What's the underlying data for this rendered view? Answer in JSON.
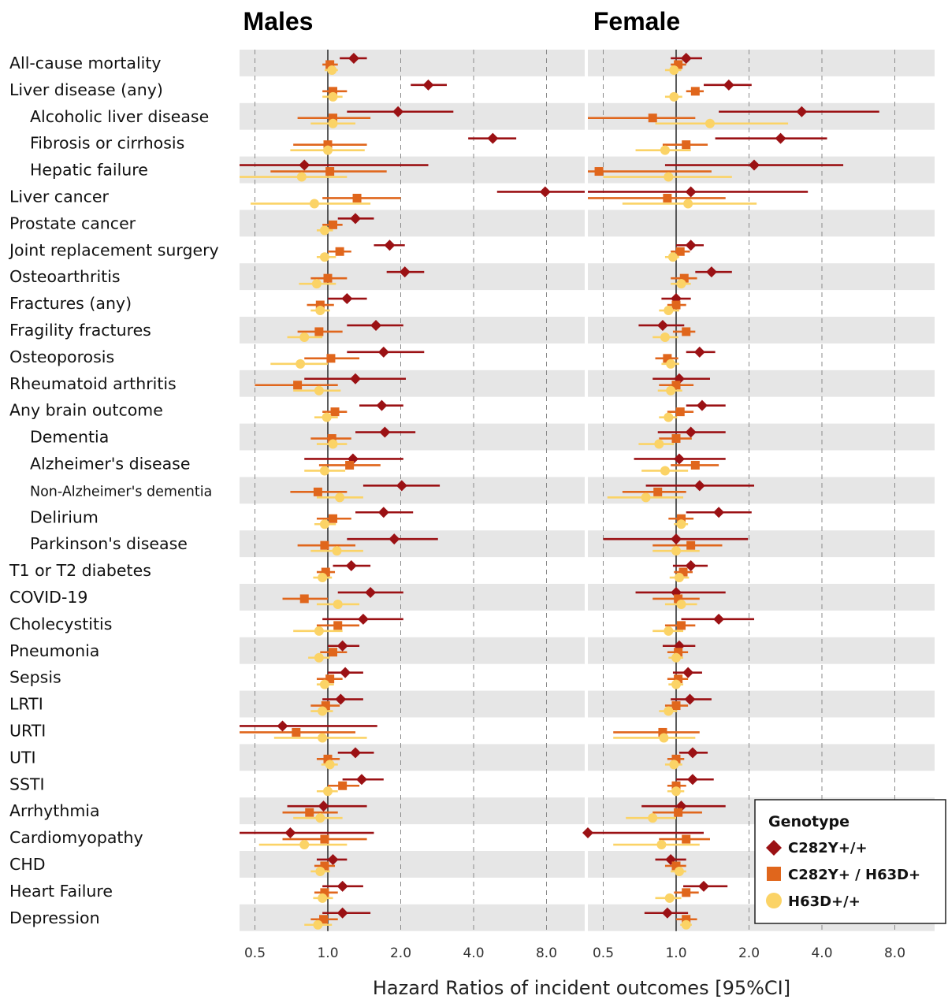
{
  "chart_data": {
    "type": "forest",
    "xlabel": "Hazard Ratios of incident outcomes [95%CI]",
    "x_scale": "log2",
    "x_ticks": [
      0.5,
      1.0,
      2.0,
      4.0,
      8.0
    ],
    "x_tick_labels": [
      "0.5",
      "1.0",
      "2.0",
      "4.0",
      "8.0"
    ],
    "xlim": [
      0.4,
      12.5
    ],
    "reference_line": 1.0,
    "grid": "vertical dashed",
    "legend": {
      "title": "Genotype",
      "placement": "bottom-right",
      "entries": [
        {
          "label": "C282Y+/+",
          "marker": "diamond",
          "color": "#9b1114"
        },
        {
          "label": "C282Y+ / H63D+",
          "marker": "square",
          "color": "#e0661c"
        },
        {
          "label": "H63D+/+",
          "marker": "circle",
          "color": "#fbd366"
        }
      ]
    },
    "outcomes": [
      {
        "label": "All-cause mortality",
        "indent": 0
      },
      {
        "label": "Liver disease (any)",
        "indent": 0
      },
      {
        "label": "Alcoholic liver disease",
        "indent": 1
      },
      {
        "label": "Fibrosis or cirrhosis",
        "indent": 1
      },
      {
        "label": "Hepatic failure",
        "indent": 1
      },
      {
        "label": "Liver cancer",
        "indent": 0
      },
      {
        "label": "Prostate cancer",
        "indent": 0
      },
      {
        "label": "Joint replacement surgery",
        "indent": 0
      },
      {
        "label": "Osteoarthritis",
        "indent": 0
      },
      {
        "label": "Fractures (any)",
        "indent": 0
      },
      {
        "label": "Fragility fractures",
        "indent": 0
      },
      {
        "label": "Osteoporosis",
        "indent": 0
      },
      {
        "label": "Rheumatoid arthritis",
        "indent": 0
      },
      {
        "label": "Any brain outcome",
        "indent": 0
      },
      {
        "label": "Dementia",
        "indent": 1
      },
      {
        "label": "Alzheimer's disease",
        "indent": 1
      },
      {
        "label": "Non-Alzheimer's dementia",
        "indent": 1
      },
      {
        "label": "Delirium",
        "indent": 1
      },
      {
        "label": "Parkinson's disease",
        "indent": 1
      },
      {
        "label": "T1 or T2 diabetes",
        "indent": 0
      },
      {
        "label": "COVID-19",
        "indent": 0
      },
      {
        "label": "Cholecystitis",
        "indent": 0
      },
      {
        "label": "Pneumonia",
        "indent": 0
      },
      {
        "label": "Sepsis",
        "indent": 0
      },
      {
        "label": "LRTI",
        "indent": 0
      },
      {
        "label": "URTI",
        "indent": 0
      },
      {
        "label": "UTI",
        "indent": 0
      },
      {
        "label": "SSTI",
        "indent": 0
      },
      {
        "label": "Arrhythmia",
        "indent": 0
      },
      {
        "label": "Cardiomyopathy",
        "indent": 0
      },
      {
        "label": "CHD",
        "indent": 0
      },
      {
        "label": "Heart Failure",
        "indent": 0
      },
      {
        "label": "Depression",
        "indent": 0
      }
    ],
    "panels": [
      {
        "title": "Males",
        "series": [
          {
            "name": "C282Y+/+",
            "hr": [
              1.28,
              2.6,
              1.95,
              4.8,
              0.8,
              7.9,
              1.3,
              1.8,
              2.08,
              1.2,
              1.58,
              1.7,
              1.3,
              1.67,
              1.72,
              1.27,
              2.02,
              1.7,
              1.88,
              1.25,
              1.5,
              1.4,
              1.15,
              1.18,
              1.13,
              0.65,
              1.3,
              1.38,
              0.96,
              0.7,
              1.05,
              1.15,
              1.15
            ],
            "lo": [
              1.12,
              2.2,
              1.2,
              3.8,
              0.4,
              5.0,
              1.1,
              1.55,
              1.75,
              1.0,
              1.2,
              1.2,
              0.8,
              1.35,
              1.3,
              0.8,
              1.4,
              1.3,
              1.2,
              1.05,
              1.1,
              0.95,
              1.0,
              1.0,
              0.95,
              0.4,
              1.1,
              1.15,
              0.68,
              0.4,
              0.9,
              0.95,
              0.95
            ],
            "hi": [
              1.45,
              3.1,
              3.3,
              6.0,
              2.6,
              12.5,
              1.55,
              2.08,
              2.5,
              1.45,
              2.05,
              2.5,
              2.1,
              2.05,
              2.3,
              2.05,
              2.9,
              2.25,
              2.85,
              1.5,
              2.05,
              2.05,
              1.35,
              1.4,
              1.4,
              1.6,
              1.55,
              1.7,
              1.45,
              1.55,
              1.2,
              1.4,
              1.5
            ]
          },
          {
            "name": "C282Y+ / H63D+",
            "hr": [
              1.02,
              1.05,
              1.05,
              1.0,
              1.02,
              1.32,
              1.05,
              1.12,
              1.0,
              0.93,
              0.92,
              1.03,
              0.75,
              1.07,
              1.04,
              1.23,
              0.91,
              1.05,
              0.97,
              0.98,
              0.8,
              1.1,
              1.05,
              1.02,
              0.98,
              0.74,
              1.0,
              1.15,
              0.84,
              0.97,
              0.97,
              0.97,
              0.96
            ],
            "lo": [
              0.95,
              0.95,
              0.75,
              0.72,
              0.58,
              0.95,
              0.95,
              1.0,
              0.85,
              0.82,
              0.75,
              0.8,
              0.5,
              0.95,
              0.85,
              0.92,
              0.7,
              0.9,
              0.75,
              0.9,
              0.65,
              0.9,
              0.93,
              0.9,
              0.85,
              0.42,
              0.9,
              1.0,
              0.65,
              0.65,
              0.88,
              0.88,
              0.85
            ],
            "hi": [
              1.1,
              1.2,
              1.5,
              1.45,
              1.75,
              2.0,
              1.15,
              1.25,
              1.2,
              1.06,
              1.15,
              1.35,
              1.1,
              1.2,
              1.25,
              1.65,
              1.2,
              1.25,
              1.3,
              1.07,
              1.0,
              1.35,
              1.2,
              1.15,
              1.12,
              1.3,
              1.12,
              1.35,
              1.1,
              1.45,
              1.07,
              1.1,
              1.1
            ]
          },
          {
            "name": "H63D+/+",
            "hr": [
              1.04,
              1.05,
              1.05,
              1.0,
              0.78,
              0.88,
              0.97,
              0.97,
              0.9,
              0.93,
              0.8,
              0.77,
              0.92,
              0.99,
              1.05,
              0.97,
              1.12,
              0.97,
              1.09,
              0.95,
              1.1,
              0.92,
              0.92,
              0.97,
              0.95,
              0.95,
              1.02,
              1.0,
              0.93,
              0.8,
              0.93,
              0.95,
              0.91
            ],
            "lo": [
              0.97,
              0.95,
              0.85,
              0.7,
              0.4,
              0.48,
              0.9,
              0.9,
              0.76,
              0.85,
              0.68,
              0.58,
              0.72,
              0.88,
              0.9,
              0.8,
              0.9,
              0.88,
              0.85,
              0.87,
              0.9,
              0.72,
              0.83,
              0.9,
              0.85,
              0.6,
              0.94,
              0.9,
              0.72,
              0.52,
              0.85,
              0.87,
              0.8
            ],
            "hi": [
              1.1,
              1.15,
              1.3,
              1.42,
              1.2,
              1.5,
              1.05,
              1.08,
              1.08,
              1.02,
              0.95,
              1.0,
              1.13,
              1.1,
              1.2,
              1.18,
              1.4,
              1.08,
              1.4,
              1.04,
              1.35,
              1.15,
              1.02,
              1.06,
              1.05,
              1.45,
              1.1,
              1.1,
              1.15,
              1.2,
              1.02,
              1.05,
              1.04
            ]
          }
        ]
      },
      {
        "title": "Female",
        "series": [
          {
            "name": "C282Y+/+",
            "hr": [
              1.1,
              1.65,
              3.3,
              2.7,
              2.1,
              1.15,
              null,
              1.15,
              1.4,
              1.0,
              0.88,
              1.25,
              1.03,
              1.28,
              1.15,
              1.03,
              1.25,
              1.5,
              1.0,
              1.15,
              1.0,
              1.5,
              1.03,
              1.12,
              1.14,
              null,
              1.17,
              1.17,
              1.05,
              0.4,
              0.95,
              1.3,
              0.92
            ],
            "lo": [
              0.95,
              1.3,
              1.5,
              1.45,
              0.9,
              0.4,
              null,
              1.0,
              1.2,
              0.87,
              0.7,
              1.1,
              0.8,
              1.1,
              0.84,
              0.67,
              0.75,
              1.1,
              0.5,
              0.97,
              0.68,
              1.05,
              0.88,
              0.97,
              0.95,
              0.4,
              1.03,
              1.0,
              0.72,
              0.4,
              0.82,
              1.07,
              0.74
            ],
            "hi": [
              1.28,
              2.05,
              6.9,
              4.2,
              4.9,
              3.5,
              null,
              1.3,
              1.7,
              1.15,
              1.08,
              1.45,
              1.38,
              1.6,
              1.6,
              1.6,
              2.1,
              2.05,
              1.98,
              1.35,
              1.6,
              2.1,
              1.2,
              1.28,
              1.4,
              null,
              1.35,
              1.43,
              1.6,
              1.3,
              1.1,
              1.63,
              1.12
            ]
          },
          {
            "name": "C282Y+ / H63D+",
            "hr": [
              1.02,
              1.2,
              0.8,
              1.1,
              0.48,
              0.92,
              null,
              1.04,
              1.08,
              1.0,
              1.1,
              0.92,
              1.0,
              1.04,
              1.0,
              1.2,
              0.84,
              1.05,
              1.15,
              1.07,
              1.02,
              1.05,
              1.02,
              1.02,
              1.0,
              0.88,
              1.0,
              1.0,
              1.02,
              1.1,
              1.0,
              1.1,
              1.1
            ],
            "lo": [
              0.95,
              1.1,
              0.4,
              0.88,
              0.4,
              0.4,
              null,
              0.95,
              0.95,
              0.92,
              0.97,
              0.82,
              0.85,
              0.92,
              0.85,
              0.95,
              0.6,
              0.93,
              0.8,
              0.98,
              0.8,
              0.9,
              0.92,
              0.92,
              0.9,
              0.55,
              0.92,
              0.92,
              0.8,
              0.85,
              0.9,
              0.98,
              1.0
            ],
            "hi": [
              1.1,
              1.3,
              1.2,
              1.35,
              1.4,
              1.6,
              null,
              1.14,
              1.22,
              1.1,
              1.2,
              1.02,
              1.18,
              1.18,
              1.16,
              1.5,
              1.1,
              1.18,
              1.55,
              1.17,
              1.25,
              1.2,
              1.12,
              1.12,
              1.12,
              1.25,
              1.08,
              1.1,
              1.28,
              1.38,
              1.1,
              1.24,
              1.22
            ]
          },
          {
            "name": "H63D+/+",
            "hr": [
              0.98,
              0.98,
              1.38,
              0.9,
              0.93,
              1.12,
              null,
              0.97,
              1.05,
              0.93,
              0.9,
              0.95,
              0.95,
              0.93,
              0.85,
              0.9,
              0.75,
              1.05,
              1.0,
              1.03,
              1.05,
              0.93,
              1.0,
              1.0,
              0.93,
              0.89,
              0.98,
              1.0,
              0.8,
              0.87,
              1.03,
              0.94,
              1.1
            ],
            "lo": [
              0.9,
              0.9,
              0.82,
              0.68,
              0.5,
              0.6,
              null,
              0.9,
              0.95,
              0.85,
              0.8,
              0.87,
              0.84,
              0.85,
              0.7,
              0.72,
              0.52,
              0.98,
              0.8,
              0.94,
              0.9,
              0.8,
              0.93,
              0.93,
              0.85,
              0.55,
              0.9,
              0.92,
              0.62,
              0.55,
              0.95,
              0.82,
              1.04
            ],
            "hi": [
              1.05,
              1.06,
              2.9,
              1.15,
              1.7,
              2.15,
              null,
              1.03,
              1.15,
              1.03,
              1.02,
              1.03,
              1.06,
              1.01,
              0.98,
              1.12,
              1.07,
              1.12,
              1.25,
              1.13,
              1.22,
              1.07,
              1.07,
              1.07,
              1.01,
              1.2,
              1.06,
              1.08,
              1.0,
              1.25,
              1.1,
              1.05,
              1.16
            ]
          }
        ]
      }
    ]
  }
}
